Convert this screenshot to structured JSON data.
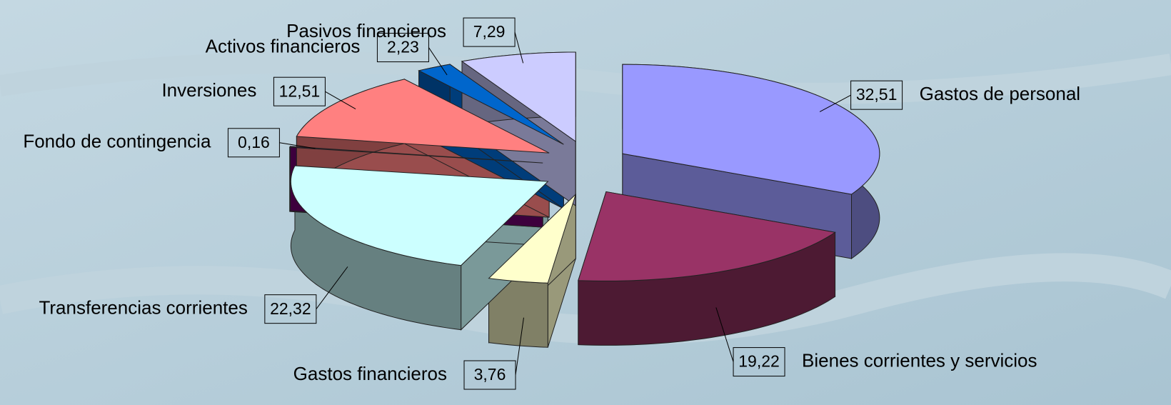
{
  "chart_data": {
    "type": "pie",
    "three_d": true,
    "categories": [
      "Gastos de personal",
      "Bienes corrientes y servicios",
      "Gastos financieros",
      "Transferencias corrientes",
      "Fondo de contingencia",
      "Inversiones",
      "Activos financieros",
      "Pasivos financieros"
    ],
    "values": [
      32.51,
      19.22,
      3.76,
      22.32,
      0.16,
      12.51,
      2.23,
      7.29
    ],
    "value_labels": [
      "32,51",
      "19,22",
      "3,76",
      "22,32",
      "0,16",
      "12,51",
      "2,23",
      "7,29"
    ],
    "colors": [
      "#9999ff",
      "#993366",
      "#ffffcc",
      "#ccffff",
      "#660066",
      "#ff8080",
      "#0066cc",
      "#ccccff"
    ]
  }
}
